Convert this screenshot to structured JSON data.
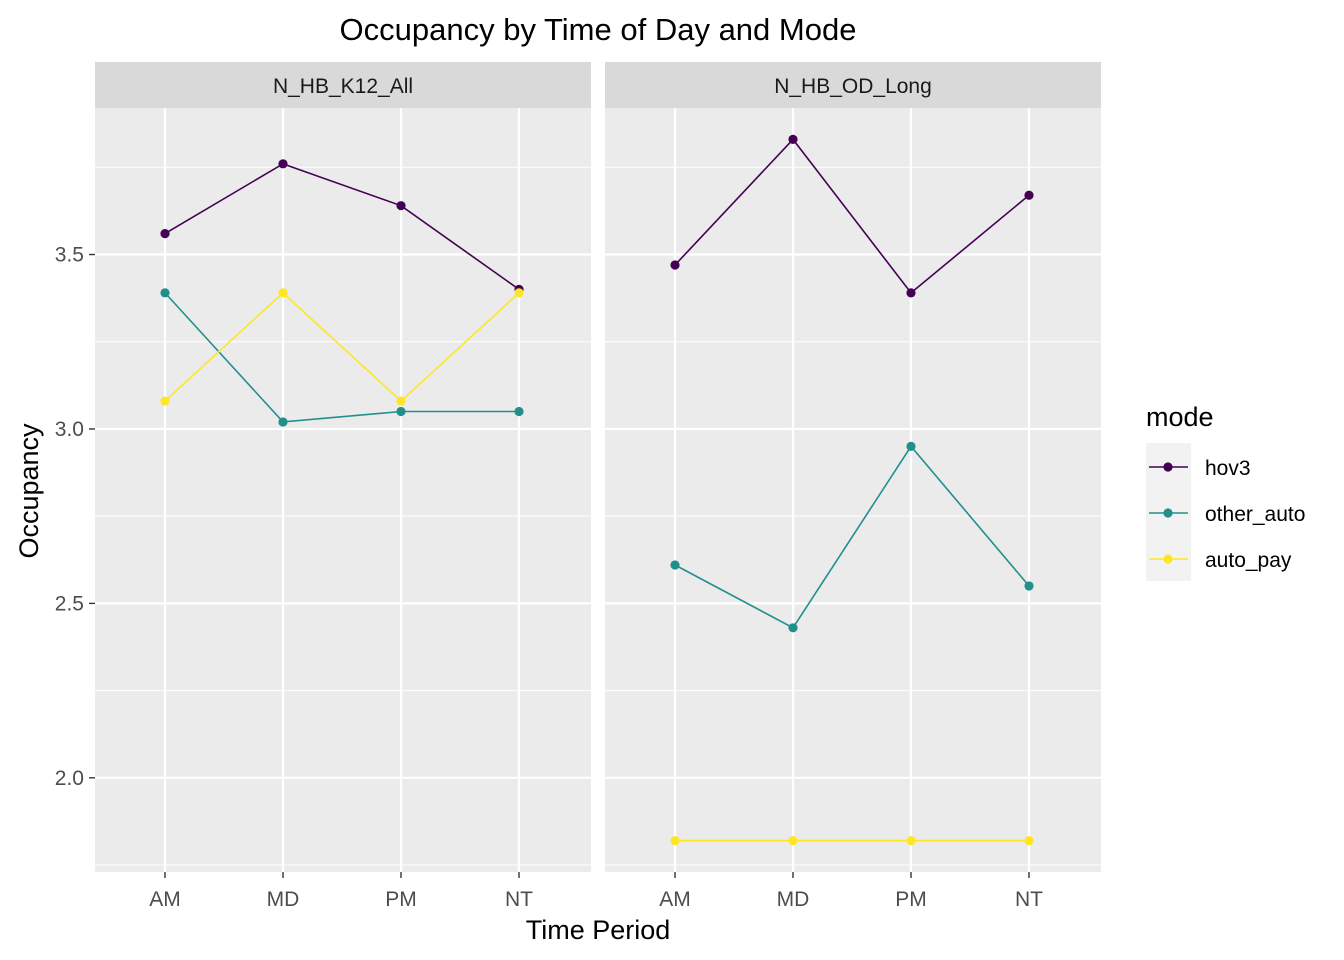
{
  "chart_data": {
    "type": "line",
    "title": "Occupancy by Time of Day and Mode",
    "xlabel": "Time Period",
    "ylabel": "Occupancy",
    "categories": [
      "AM",
      "MD",
      "PM",
      "NT"
    ],
    "ylim": [
      1.73,
      3.92
    ],
    "yticks": [
      "2.0",
      "2.5",
      "3.0",
      "3.5"
    ],
    "ytick_values": [
      2.0,
      2.5,
      3.0,
      3.5
    ],
    "legend": {
      "title": "mode",
      "position": "right",
      "entries": [
        "hov3",
        "other_auto",
        "auto_pay"
      ]
    },
    "series_colors": {
      "hov3": "#440154",
      "other_auto": "#21908c",
      "auto_pay": "#fde725"
    },
    "panel_background": "#ebebeb",
    "strip_background": "#d9d9d9",
    "grid": true,
    "facets": [
      {
        "label": "N_HB_K12_All",
        "series": [
          {
            "name": "hov3",
            "values": [
              3.56,
              3.76,
              3.64,
              3.4
            ]
          },
          {
            "name": "other_auto",
            "values": [
              3.39,
              3.02,
              3.05,
              3.05
            ]
          },
          {
            "name": "auto_pay",
            "values": [
              3.08,
              3.39,
              3.08,
              3.39
            ]
          }
        ]
      },
      {
        "label": "N_HB_OD_Long",
        "series": [
          {
            "name": "hov3",
            "values": [
              3.47,
              3.83,
              3.39,
              3.67
            ]
          },
          {
            "name": "other_auto",
            "values": [
              2.61,
              2.43,
              2.95,
              2.55
            ]
          },
          {
            "name": "auto_pay",
            "values": [
              1.82,
              1.82,
              1.82,
              1.82
            ]
          }
        ]
      }
    ]
  }
}
